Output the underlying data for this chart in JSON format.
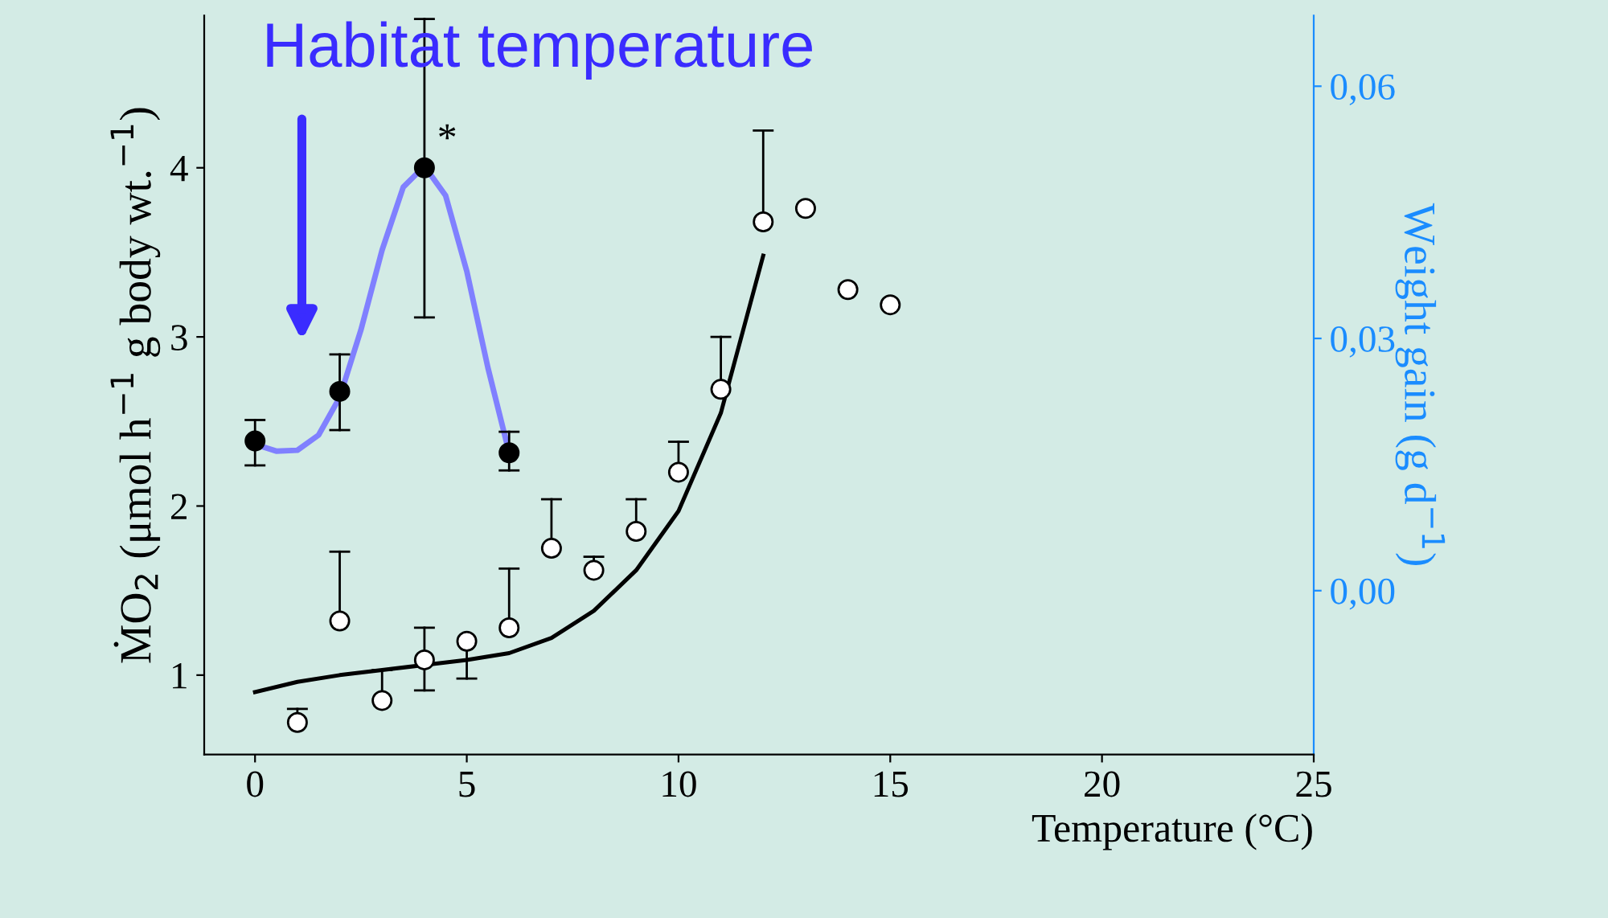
{
  "chart_data": {
    "type": "scatter",
    "xlabel": "Temperature (°C)",
    "ylabel": "ṀO$_{2}$ (μmol h$^{−1}$ g body wt.$^{−1}$)",
    "y2label": "Weight gain (g d$^{−1}$)",
    "xlim": [
      -1.2,
      25
    ],
    "xticks": [
      0,
      5,
      10,
      15,
      20,
      25
    ],
    "ylim": [
      0.53,
      4.9
    ],
    "yticks": [
      1,
      2,
      3,
      4
    ],
    "y2lim": [
      -0.0195,
      0.0684
    ],
    "y2ticks": [
      {
        "value": 0,
        "label": "0,00"
      },
      {
        "value": 0.03,
        "label": "0,03"
      },
      {
        "value": 0.06,
        "label": "0,06"
      }
    ],
    "grid": false,
    "legend": false,
    "annotations": [
      "Habitat temperature",
      {
        "text": "*",
        "x": 4,
        "y": 4.05
      }
    ],
    "series": [
      {
        "color": "#ffffff",
        "marker": "circle",
        "x": [
          1,
          2,
          3,
          4,
          5,
          6,
          7,
          8,
          9,
          10,
          11,
          12,
          13,
          14,
          15
        ],
        "values": [
          0.72,
          1.32,
          0.85,
          1.09,
          1.2,
          1.28,
          1.75,
          1.62,
          1.85,
          2.2,
          2.69,
          3.68,
          3.76,
          3.28,
          3.19
        ],
        "errors": [
          [
            0.72,
            0.8
          ],
          [
            1.32,
            1.73
          ],
          [
            0.85,
            1.03
          ],
          [
            0.91,
            1.28
          ],
          [
            0.98,
            1.2
          ],
          [
            1.28,
            1.63
          ],
          [
            1.75,
            2.04
          ],
          [
            1.62,
            1.7
          ],
          [
            1.85,
            2.04
          ],
          [
            2.2,
            2.38
          ],
          [
            2.69,
            3.0
          ],
          [
            3.68,
            4.22
          ],
          null,
          null,
          null
        ]
      },
      {
        "type": "line",
        "color": "#000000",
        "marker": "none",
        "x": [
          0,
          1,
          2,
          3,
          4,
          5,
          6,
          7,
          8,
          9,
          10,
          11,
          12
        ],
        "values": [
          0.9,
          0.96,
          1.0,
          1.03,
          1.06,
          1.09,
          1.13,
          1.22,
          1.38,
          1.62,
          1.97,
          2.55,
          3.48
        ]
      },
      {
        "type": "line",
        "axis": "y2",
        "color": "#8080ff",
        "marker": "none",
        "x": [
          0,
          0.5,
          1,
          1.5,
          2,
          2.5,
          3,
          3.5,
          4,
          4.5,
          5,
          5.5,
          6
        ],
        "values": [
          0.0174,
          0.0166,
          0.0167,
          0.0185,
          0.023,
          0.031,
          0.0405,
          0.048,
          0.0505,
          0.047,
          0.038,
          0.0265,
          0.0164
        ]
      },
      {
        "axis": "y2",
        "color": "#000000",
        "marker": "circle",
        "x": [
          0,
          2,
          4,
          6
        ],
        "values": [
          0.0178,
          0.0237,
          0.0503,
          0.0164
        ],
        "errors": [
          [
            0.0149,
            0.0203
          ],
          [
            0.0191,
            0.0281
          ],
          [
            0.0325,
            0.068
          ],
          [
            0.0143,
            0.0189
          ]
        ]
      }
    ]
  }
}
